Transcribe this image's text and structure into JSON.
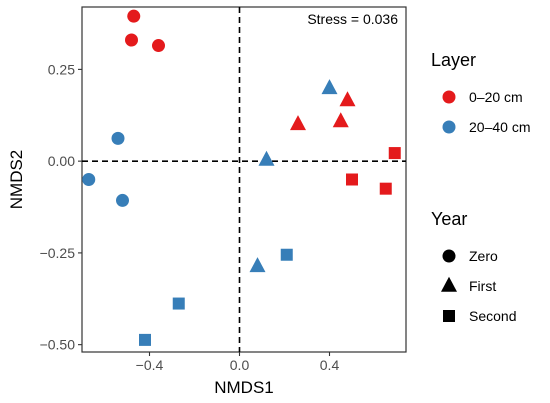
{
  "chart_data": {
    "type": "scatter",
    "xlabel": "NMDS1",
    "ylabel": "NMDS2",
    "xlim": [
      -0.7,
      0.74
    ],
    "ylim": [
      -0.52,
      0.42
    ],
    "x_ticks": [
      -0.4,
      0.0,
      0.4
    ],
    "x_tick_labels": [
      "−0.4",
      "0.0",
      "0.4"
    ],
    "y_ticks": [
      -0.5,
      -0.25,
      0.0,
      0.25
    ],
    "y_tick_labels": [
      "−0.50",
      "−0.25",
      "0.00",
      "0.25"
    ],
    "grid": false,
    "reference_lines": {
      "x": 0,
      "y": 0,
      "style": "dashed"
    },
    "annotation": "Stress = 0.036",
    "legends": [
      {
        "title": "Layer",
        "placement": "right",
        "items": [
          {
            "label": "0–20 cm",
            "color": "#e41a1c",
            "shape": "circle"
          },
          {
            "label": "20–40 cm",
            "color": "#377eb8",
            "shape": "circle"
          }
        ]
      },
      {
        "title": "Year",
        "placement": "right",
        "items": [
          {
            "label": "Zero",
            "color": "#000000",
            "shape": "circle"
          },
          {
            "label": "First",
            "color": "#000000",
            "shape": "triangle"
          },
          {
            "label": "Second",
            "color": "#000000",
            "shape": "square"
          }
        ]
      }
    ],
    "colors": {
      "0–20 cm": "#e41a1c",
      "20–40 cm": "#377eb8"
    },
    "points": [
      {
        "layer": "0–20 cm",
        "year": "Zero",
        "x": -0.47,
        "y": 0.395
      },
      {
        "layer": "0–20 cm",
        "year": "Zero",
        "x": -0.48,
        "y": 0.33
      },
      {
        "layer": "0–20 cm",
        "year": "Zero",
        "x": -0.36,
        "y": 0.315
      },
      {
        "layer": "0–20 cm",
        "year": "First",
        "x": 0.48,
        "y": 0.165
      },
      {
        "layer": "0–20 cm",
        "year": "First",
        "x": 0.26,
        "y": 0.1
      },
      {
        "layer": "0–20 cm",
        "year": "First",
        "x": 0.45,
        "y": 0.108
      },
      {
        "layer": "0–20 cm",
        "year": "Second",
        "x": 0.69,
        "y": 0.022
      },
      {
        "layer": "0–20 cm",
        "year": "Second",
        "x": 0.5,
        "y": -0.05
      },
      {
        "layer": "0–20 cm",
        "year": "Second",
        "x": 0.65,
        "y": -0.075
      },
      {
        "layer": "20–40 cm",
        "year": "Zero",
        "x": -0.54,
        "y": 0.062
      },
      {
        "layer": "20–40 cm",
        "year": "Zero",
        "x": -0.67,
        "y": -0.05
      },
      {
        "layer": "20–40 cm",
        "year": "Zero",
        "x": -0.52,
        "y": -0.107
      },
      {
        "layer": "20–40 cm",
        "year": "First",
        "x": 0.4,
        "y": 0.198
      },
      {
        "layer": "20–40 cm",
        "year": "First",
        "x": 0.12,
        "y": 0.003
      },
      {
        "layer": "20–40 cm",
        "year": "First",
        "x": 0.08,
        "y": -0.287
      },
      {
        "layer": "20–40 cm",
        "year": "Second",
        "x": 0.21,
        "y": -0.255
      },
      {
        "layer": "20–40 cm",
        "year": "Second",
        "x": -0.27,
        "y": -0.388
      },
      {
        "layer": "20–40 cm",
        "year": "Second",
        "x": -0.42,
        "y": -0.487
      }
    ]
  }
}
